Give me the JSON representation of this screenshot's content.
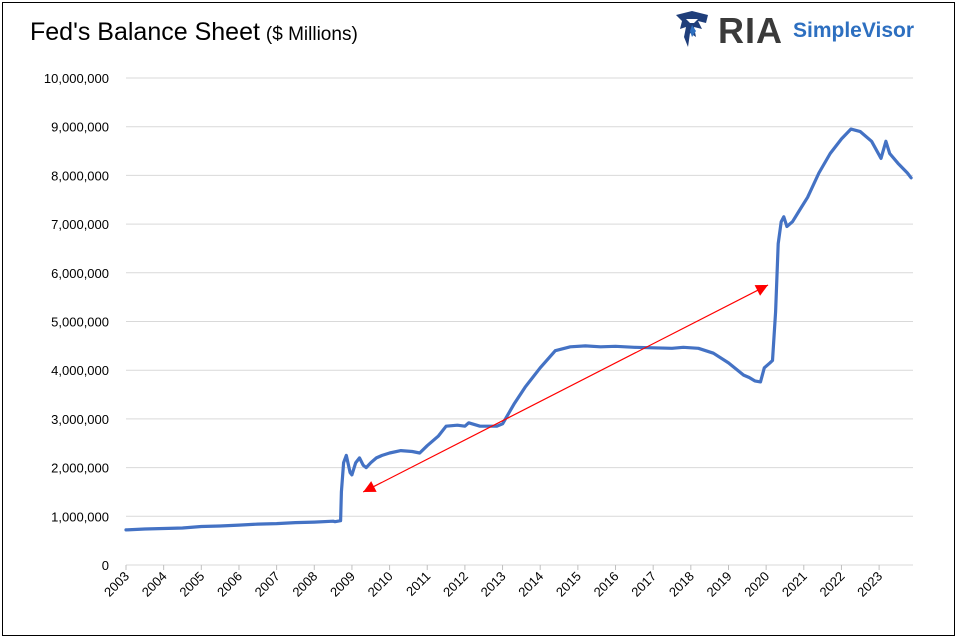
{
  "title": "Fed's Balance Sheet",
  "subtitle": "($ Millions)",
  "logo": {
    "ria_text": "RIA",
    "simplevisor_text": "SimpleVisor"
  },
  "chart_data": {
    "type": "line",
    "title": "Fed's Balance Sheet ($ Millions)",
    "xlabel": "",
    "ylabel": "",
    "ylim": [
      0,
      10000000
    ],
    "xlim": [
      2003,
      2023.9
    ],
    "grid": true,
    "y_tick_labels": [
      "0",
      "1,000,000",
      "2,000,000",
      "3,000,000",
      "4,000,000",
      "5,000,000",
      "6,000,000",
      "7,000,000",
      "8,000,000",
      "9,000,000",
      "10,000,000"
    ],
    "y_tick_values": [
      0,
      1000000,
      2000000,
      3000000,
      4000000,
      5000000,
      6000000,
      7000000,
      8000000,
      9000000,
      10000000
    ],
    "x_tick_labels": [
      "2003",
      "2004",
      "2005",
      "2006",
      "2007",
      "2008",
      "2009",
      "2010",
      "2011",
      "2012",
      "2013",
      "2014",
      "2015",
      "2016",
      "2017",
      "2018",
      "2019",
      "2020",
      "2021",
      "2022",
      "2023"
    ],
    "line_color": "#4472c4",
    "series": [
      {
        "x": [
          2003.0,
          2003.5,
          2004.0,
          2004.5,
          2005.0,
          2005.5,
          2006.0,
          2006.5,
          2007.0,
          2007.5,
          2008.0,
          2008.5,
          2008.55,
          2008.7,
          2008.72,
          2008.78,
          2008.85,
          2008.95,
          2009.0,
          2009.1,
          2009.2,
          2009.3,
          2009.38,
          2009.5,
          2009.65,
          2009.8,
          2010.0,
          2010.3,
          2010.6,
          2010.8,
          2011.0,
          2011.3,
          2011.5,
          2011.8,
          2012.0,
          2012.1,
          2012.4,
          2012.6,
          2012.85,
          2013.0,
          2013.3,
          2013.6,
          2014.0,
          2014.4,
          2014.8,
          2015.2,
          2015.6,
          2016.0,
          2016.5,
          2017.0,
          2017.5,
          2017.8,
          2018.2,
          2018.6,
          2019.0,
          2019.4,
          2019.55,
          2019.7,
          2019.85,
          2019.95,
          2020.1,
          2020.17,
          2020.25,
          2020.32,
          2020.4,
          2020.47,
          2020.55,
          2020.7,
          2020.9,
          2021.1,
          2021.4,
          2021.7,
          2022.0,
          2022.25,
          2022.5,
          2022.8,
          2023.05,
          2023.18,
          2023.28,
          2023.5,
          2023.75,
          2023.85
        ],
        "y": [
          720000,
          740000,
          750000,
          760000,
          790000,
          800000,
          820000,
          840000,
          850000,
          870000,
          880000,
          900000,
          890000,
          910000,
          1500000,
          2100000,
          2250000,
          1900000,
          1850000,
          2100000,
          2200000,
          2050000,
          2000000,
          2100000,
          2200000,
          2250000,
          2300000,
          2350000,
          2330000,
          2300000,
          2450000,
          2650000,
          2850000,
          2870000,
          2850000,
          2920000,
          2850000,
          2850000,
          2850000,
          2900000,
          3300000,
          3650000,
          4050000,
          4400000,
          4480000,
          4500000,
          4480000,
          4490000,
          4470000,
          4460000,
          4450000,
          4470000,
          4450000,
          4350000,
          4150000,
          3900000,
          3850000,
          3780000,
          3760000,
          4050000,
          4150000,
          4200000,
          5200000,
          6600000,
          7050000,
          7150000,
          6950000,
          7050000,
          7300000,
          7550000,
          8050000,
          8450000,
          8750000,
          8950000,
          8900000,
          8700000,
          8350000,
          8700000,
          8450000,
          8250000,
          8050000,
          7950000
        ]
      }
    ],
    "annotations": [
      {
        "type": "double-arrow",
        "color": "#ff0000",
        "from": [
          2009.3,
          1500000
        ],
        "to": [
          2020.05,
          5750000
        ]
      }
    ]
  }
}
